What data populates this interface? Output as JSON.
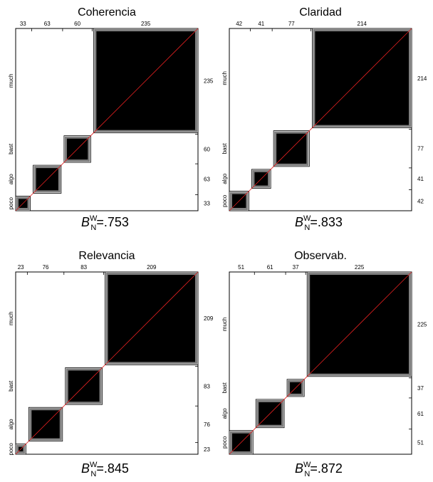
{
  "chart_data": [
    {
      "type": "agreement-plot",
      "title": "Coherencia",
      "categories": [
        "poco",
        "algo",
        "bast",
        "much"
      ],
      "col_marginals": [
        33,
        63,
        60,
        235
      ],
      "row_marginals": [
        33,
        63,
        60,
        235
      ],
      "statistic": {
        "symbol": "B",
        "superscript": "W",
        "subscript": "N",
        "value": ".753"
      }
    },
    {
      "type": "agreement-plot",
      "title": "Claridad",
      "categories": [
        "poco",
        "algo",
        "bast",
        "much"
      ],
      "col_marginals": [
        42,
        41,
        77,
        214
      ],
      "row_marginals": [
        42,
        41,
        77,
        214
      ],
      "statistic": {
        "symbol": "B",
        "superscript": "W",
        "subscript": "N",
        "value": ".833"
      }
    },
    {
      "type": "agreement-plot",
      "title": "Relevancia",
      "categories": [
        "poco",
        "algo",
        "bast",
        "much"
      ],
      "col_marginals": [
        23,
        76,
        83,
        209
      ],
      "row_marginals": [
        23,
        76,
        83,
        209
      ],
      "statistic": {
        "symbol": "B",
        "superscript": "W",
        "subscript": "N",
        "value": ".845"
      }
    },
    {
      "type": "agreement-plot",
      "title": "Observab.",
      "categories": [
        "poco",
        "algo",
        "bast",
        "much"
      ],
      "col_marginals": [
        51,
        61,
        37,
        225
      ],
      "row_marginals": [
        51,
        61,
        37,
        225
      ],
      "statistic": {
        "symbol": "B",
        "superscript": "W",
        "subscript": "N",
        "value": ".872"
      }
    }
  ],
  "colors": {
    "exact_agreement": "#000000",
    "partial_agreement": "#7f7f7f",
    "diagonal_line": "#e02020",
    "frame": "#000000"
  }
}
